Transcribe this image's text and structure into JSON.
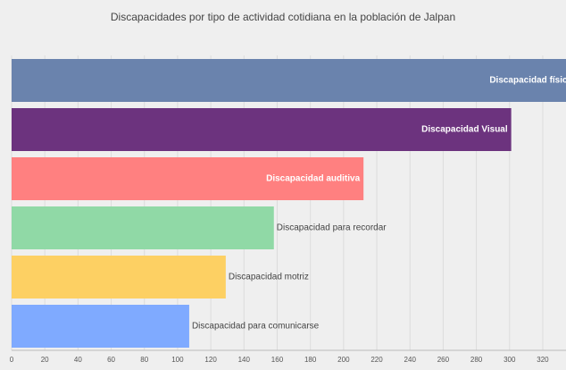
{
  "chart_data": {
    "type": "hbar",
    "title": "Discapacidades por tipo de actividad cotidiana en la población de Jalpan",
    "categories": [
      "Discapacidad física",
      "Discapacidad Visual",
      "Discapacidad auditiva",
      "Discapacidad para recordar",
      "Discapacidad motriz",
      "Discapacidad para comunicarse"
    ],
    "values": [
      340,
      301,
      212,
      158,
      129,
      107
    ],
    "colors": [
      "#6a83ad",
      "#6c337e",
      "#ff8080",
      "#90d9a6",
      "#fdd063",
      "#7faaff"
    ],
    "xlim": [
      0,
      334
    ],
    "xticks": [
      0,
      20,
      40,
      60,
      80,
      100,
      120,
      140,
      160,
      180,
      200,
      220,
      240,
      260,
      280,
      300,
      320
    ],
    "grid": true
  }
}
